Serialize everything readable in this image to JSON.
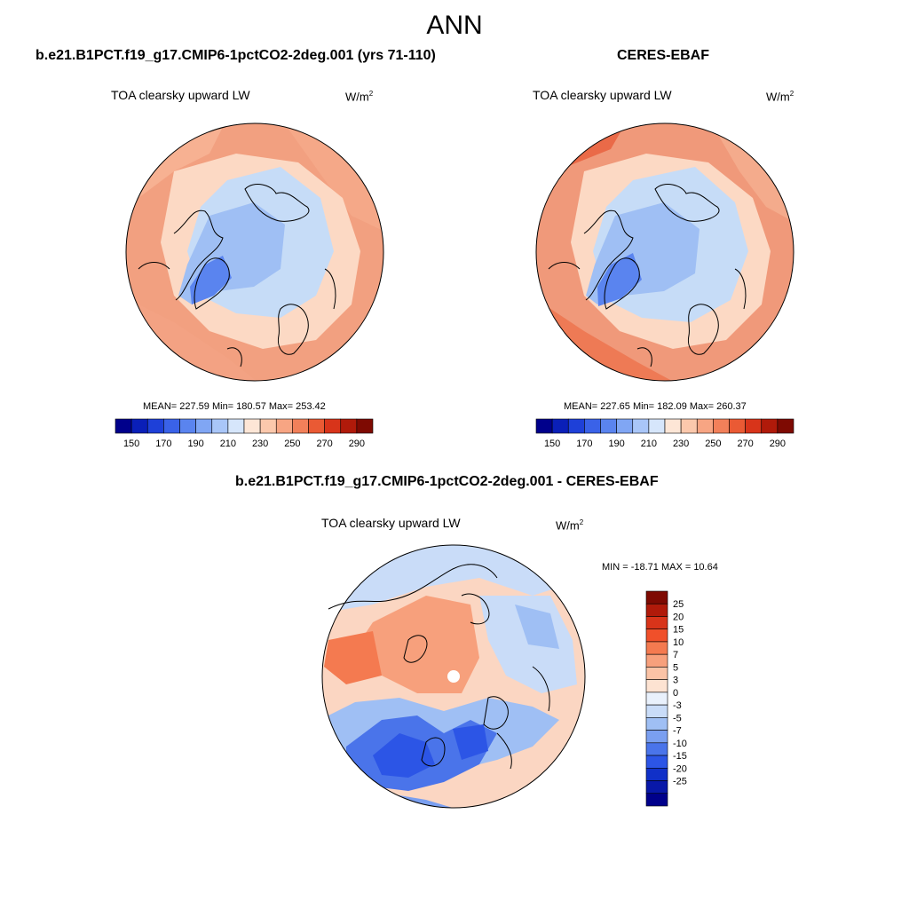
{
  "main_title": "ANN",
  "colors": {
    "coast": "#000000",
    "ocean_model": "#f2a080",
    "ocean_obs": "#f0997a",
    "land_model": "#fcd9c4",
    "ice_blue": "#c6dcf7",
    "deep_blue": "#6f97e6",
    "diff_ocean": "#fbd6c2",
    "diff_blue": "#2f58e6"
  },
  "panels": {
    "model": {
      "title": "b.e21.B1PCT.f19_g17.CMIP6-1pctCO2-2deg.001 (yrs 71-110)",
      "variable": "TOA clearsky upward LW",
      "unit_base": "W/m",
      "unit_exp": "2",
      "stats": "MEAN= 227.59  Min= 180.57  Max= 253.42"
    },
    "obs": {
      "title": "CERES-EBAF",
      "variable": "TOA clearsky upward LW",
      "unit_base": "W/m",
      "unit_exp": "2",
      "stats": "MEAN= 227.65  Min= 182.09  Max= 260.37"
    },
    "diff": {
      "title": "b.e21.B1PCT.f19_g17.CMIP6-1pctCO2-2deg.001 - CERES-EBAF",
      "variable": "TOA clearsky upward LW",
      "unit_base": "W/m",
      "unit_exp": "2",
      "stats": "MIN = -18.71 MAX =  10.64"
    }
  },
  "colorbar_main": {
    "colors": [
      "#00008b",
      "#0a1fb8",
      "#1e40d8",
      "#3a62e8",
      "#5a84ef",
      "#80a6f4",
      "#a9c6f8",
      "#d6e6fb",
      "#fde6d6",
      "#fbc8ac",
      "#f7a583",
      "#f2805a",
      "#ea5a34",
      "#d8341a",
      "#b01a0a",
      "#7e0a02"
    ],
    "labels": [
      "150",
      "170",
      "190",
      "210",
      "230",
      "250",
      "270",
      "290"
    ]
  },
  "colorbar_diff": {
    "colors": [
      "#7e0a02",
      "#b01a0a",
      "#d8341a",
      "#f0502a",
      "#f47a50",
      "#f7a07c",
      "#fbc3a6",
      "#fde3d2",
      "#e9f1fc",
      "#c9dcf8",
      "#9fbff4",
      "#7a9ff0",
      "#4a74ea",
      "#2c55e6",
      "#1030c8",
      "#0818a8",
      "#00008b"
    ],
    "labels": [
      "25",
      "20",
      "15",
      "10",
      "7",
      "5",
      "3",
      "0",
      "-3",
      "-5",
      "-7",
      "-10",
      "-15",
      "-20",
      "-25"
    ]
  }
}
